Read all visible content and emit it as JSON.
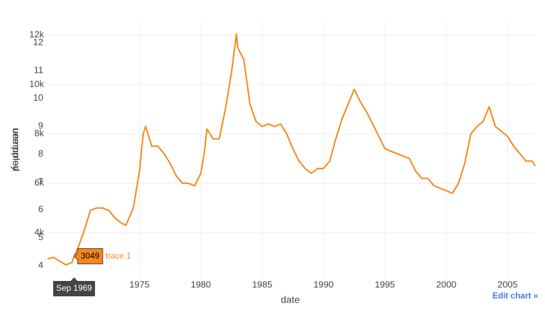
{
  "chart_data": {
    "type": "line",
    "x_title": "date",
    "y_title": "unemploy",
    "y2_title": "uempmed",
    "edit_link": "Edit chart »",
    "x": [
      1967.5,
      1968.0,
      1968.5,
      1969.0,
      1969.5,
      1969.67,
      1970.0,
      1970.5,
      1971.0,
      1971.5,
      1972.0,
      1972.5,
      1973.0,
      1973.5,
      1973.9,
      1974.5,
      1975.0,
      1975.3,
      1975.5,
      1976.0,
      1976.5,
      1977.0,
      1977.5,
      1978.0,
      1978.5,
      1979.0,
      1979.5,
      1980.0,
      1980.3,
      1980.5,
      1981.0,
      1981.5,
      1982.0,
      1982.5,
      1982.9,
      1983.0,
      1983.5,
      1984.0,
      1984.5,
      1985.0,
      1985.5,
      1986.0,
      1986.5,
      1987.0,
      1987.5,
      1988.0,
      1988.5,
      1989.0,
      1989.5,
      1990.0,
      1990.5,
      1991.0,
      1991.5,
      1992.0,
      1992.5,
      1993.0,
      1993.5,
      1994.0,
      1994.5,
      1995.0,
      1995.5,
      1996.0,
      1996.5,
      1997.0,
      1997.5,
      1998.0,
      1998.5,
      1999.0,
      1999.5,
      2000.0,
      2000.5,
      2001.0,
      2001.5,
      2002.0,
      2002.5,
      2003.0,
      2003.5,
      2004.0,
      2004.5,
      2005.0,
      2005.5,
      2006.0,
      2006.5,
      2007.0,
      2007.25
    ],
    "series": [
      {
        "name": "trace 1",
        "color": "#f7861c",
        "values": [
          2944,
          3000,
          2850,
          2700,
          2800,
          3049,
          3400,
          4100,
          4900,
          5000,
          5000,
          4900,
          4600,
          4400,
          4300,
          5000,
          6500,
          8000,
          8300,
          7500,
          7500,
          7200,
          6800,
          6300,
          6000,
          6000,
          5900,
          6400,
          7300,
          8200,
          7800,
          7800,
          9000,
          10500,
          12051,
          11500,
          11000,
          9200,
          8500,
          8300,
          8400,
          8300,
          8400,
          8000,
          7400,
          6900,
          6600,
          6400,
          6600,
          6600,
          6900,
          7800,
          8600,
          9200,
          9800,
          9300,
          8900,
          8400,
          7900,
          7400,
          7300,
          7200,
          7100,
          7000,
          6500,
          6200,
          6200,
          5900,
          5800,
          5700,
          5600,
          6000,
          6800,
          8000,
          8300,
          8500,
          9100,
          8300,
          8100,
          7900,
          7500,
          7200,
          6900,
          6900,
          6700
        ]
      }
    ],
    "xlim": [
      1967.5,
      2007.25
    ],
    "xticks": [
      1975,
      1980,
      1985,
      1990,
      1995,
      2000,
      2005
    ],
    "ylim": [
      2190,
      12570
    ],
    "yticks": [
      {
        "value": 4000,
        "label": "4k"
      },
      {
        "value": 6000,
        "label": "6k"
      },
      {
        "value": 8000,
        "label": "8k"
      },
      {
        "value": 10000,
        "label": "10k"
      },
      {
        "value": 12000,
        "label": "12k"
      }
    ],
    "y2lim": [
      3.57,
      12.78
    ],
    "y2ticks": [
      4,
      5,
      6,
      7,
      8,
      9,
      10,
      11,
      12
    ],
    "grid": true,
    "hover": {
      "x_label": "Sep 1969",
      "x": 1969.67,
      "value": 3049
    }
  }
}
